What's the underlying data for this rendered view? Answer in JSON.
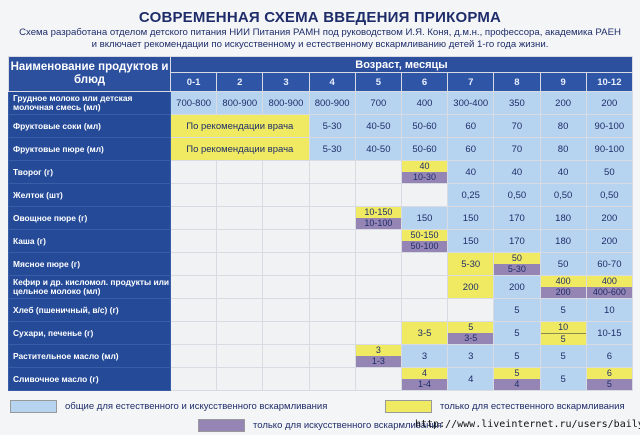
{
  "title": "СОВРЕМЕННАЯ СХЕМА ВВЕДЕНИЯ ПРИКОРМА",
  "subtitle_1": "Схема разработана отделом детского питания НИИ Питания РАМН под руководством И.Я. Коня,  д.м.н., профессора,  академика РАЕН",
  "subtitle_2": "и включает рекомендации по искусственному и естественному вскармливанию детей 1-го года жизни.",
  "colors": {
    "c": "#b6d3ef",
    "y": "#f0ea62",
    "p": "#9585b5",
    "w": "#f1f2f4",
    "header": "#244a98"
  },
  "table": {
    "name_header": "Наименование продуктов и блюд",
    "age_header": "Возраст, месяцы",
    "months": [
      "0-1",
      "2",
      "3",
      "4",
      "5",
      "6",
      "7",
      "8",
      "9",
      "10-12"
    ],
    "rows": [
      {
        "name": "Грудное молоко или детская молочная смесь (мл)",
        "cells": [
          {
            "v": "700-800",
            "c": "c"
          },
          {
            "v": "800-900",
            "c": "c"
          },
          {
            "v": "800-900",
            "c": "c"
          },
          {
            "v": "800-900",
            "c": "c"
          },
          {
            "v": "700",
            "c": "c"
          },
          {
            "v": "400",
            "c": "c"
          },
          {
            "v": "300-400",
            "c": "c"
          },
          {
            "v": "350",
            "c": "c"
          },
          {
            "v": "200",
            "c": "c"
          },
          {
            "v": "200",
            "c": "c"
          }
        ]
      },
      {
        "name": "Фруктовые соки (мл)",
        "cells": [
          {
            "v": "По рекомендации врача",
            "c": "y",
            "span": 3
          },
          {
            "v": "5-30",
            "c": "c"
          },
          {
            "v": "40-50",
            "c": "c"
          },
          {
            "v": "50-60",
            "c": "c"
          },
          {
            "v": "60",
            "c": "c"
          },
          {
            "v": "70",
            "c": "c"
          },
          {
            "v": "80",
            "c": "c"
          },
          {
            "v": "90-100",
            "c": "c"
          }
        ]
      },
      {
        "name": "Фруктовые пюре (мл)",
        "cells": [
          {
            "v": "По рекомендации врача",
            "c": "y",
            "span": 3
          },
          {
            "v": "5-30",
            "c": "c"
          },
          {
            "v": "40-50",
            "c": "c"
          },
          {
            "v": "50-60",
            "c": "c"
          },
          {
            "v": "60",
            "c": "c"
          },
          {
            "v": "70",
            "c": "c"
          },
          {
            "v": "80",
            "c": "c"
          },
          {
            "v": "90-100",
            "c": "c"
          }
        ]
      },
      {
        "name": "Творог (г)",
        "cells": [
          {
            "v": "",
            "c": "w"
          },
          {
            "v": "",
            "c": "w"
          },
          {
            "v": "",
            "c": "w"
          },
          {
            "v": "",
            "c": "w"
          },
          {
            "v": "",
            "c": "w"
          },
          {
            "top": "40",
            "tc": "y",
            "bot": "10-30",
            "bc": "p"
          },
          {
            "v": "40",
            "c": "c"
          },
          {
            "v": "40",
            "c": "c"
          },
          {
            "v": "40",
            "c": "c"
          },
          {
            "v": "50",
            "c": "c"
          }
        ]
      },
      {
        "name": "Желток (шт)",
        "cells": [
          {
            "v": "",
            "c": "w"
          },
          {
            "v": "",
            "c": "w"
          },
          {
            "v": "",
            "c": "w"
          },
          {
            "v": "",
            "c": "w"
          },
          {
            "v": "",
            "c": "w"
          },
          {
            "v": "",
            "c": "w"
          },
          {
            "v": "0,25",
            "c": "c"
          },
          {
            "v": "0,50",
            "c": "c"
          },
          {
            "v": "0,50",
            "c": "c"
          },
          {
            "v": "0,50",
            "c": "c"
          }
        ]
      },
      {
        "name": "Овощное пюре (г)",
        "cells": [
          {
            "v": "",
            "c": "w"
          },
          {
            "v": "",
            "c": "w"
          },
          {
            "v": "",
            "c": "w"
          },
          {
            "v": "",
            "c": "w"
          },
          {
            "top": "10-150",
            "tc": "y",
            "bot": "10-100",
            "bc": "p"
          },
          {
            "v": "150",
            "c": "c"
          },
          {
            "v": "150",
            "c": "c"
          },
          {
            "v": "170",
            "c": "c"
          },
          {
            "v": "180",
            "c": "c"
          },
          {
            "v": "200",
            "c": "c"
          }
        ]
      },
      {
        "name": "Каша (г)",
        "cells": [
          {
            "v": "",
            "c": "w"
          },
          {
            "v": "",
            "c": "w"
          },
          {
            "v": "",
            "c": "w"
          },
          {
            "v": "",
            "c": "w"
          },
          {
            "v": "",
            "c": "w"
          },
          {
            "top": "50-150",
            "tc": "y",
            "bot": "50-100",
            "bc": "p"
          },
          {
            "v": "150",
            "c": "c"
          },
          {
            "v": "170",
            "c": "c"
          },
          {
            "v": "180",
            "c": "c"
          },
          {
            "v": "200",
            "c": "c"
          }
        ]
      },
      {
        "name": "Мясное пюре (г)",
        "cells": [
          {
            "v": "",
            "c": "w"
          },
          {
            "v": "",
            "c": "w"
          },
          {
            "v": "",
            "c": "w"
          },
          {
            "v": "",
            "c": "w"
          },
          {
            "v": "",
            "c": "w"
          },
          {
            "v": "",
            "c": "w"
          },
          {
            "v": "5-30",
            "c": "y"
          },
          {
            "top": "50",
            "tc": "y",
            "bot": "5-30",
            "bc": "p"
          },
          {
            "v": "50",
            "c": "c"
          },
          {
            "v": "60-70",
            "c": "c"
          }
        ]
      },
      {
        "name": "Кефир и др. кисломол. продукты или цельное молоко (мл)",
        "cells": [
          {
            "v": "",
            "c": "w"
          },
          {
            "v": "",
            "c": "w"
          },
          {
            "v": "",
            "c": "w"
          },
          {
            "v": "",
            "c": "w"
          },
          {
            "v": "",
            "c": "w"
          },
          {
            "v": "",
            "c": "w"
          },
          {
            "v": "200",
            "c": "y"
          },
          {
            "v": "200",
            "c": "c"
          },
          {
            "top": "400",
            "tc": "y",
            "bot": "200",
            "bc": "p"
          },
          {
            "top": "400",
            "tc": "y",
            "bot": "400-600",
            "bc": "p"
          }
        ]
      },
      {
        "name": "Хлеб (пшеничный, в/с) (г)",
        "cells": [
          {
            "v": "",
            "c": "w"
          },
          {
            "v": "",
            "c": "w"
          },
          {
            "v": "",
            "c": "w"
          },
          {
            "v": "",
            "c": "w"
          },
          {
            "v": "",
            "c": "w"
          },
          {
            "v": "",
            "c": "w"
          },
          {
            "v": "",
            "c": "w"
          },
          {
            "v": "5",
            "c": "c"
          },
          {
            "v": "5",
            "c": "c"
          },
          {
            "v": "10",
            "c": "c"
          }
        ]
      },
      {
        "name": "Сухари,  печенье (г)",
        "cells": [
          {
            "v": "",
            "c": "w"
          },
          {
            "v": "",
            "c": "w"
          },
          {
            "v": "",
            "c": "w"
          },
          {
            "v": "",
            "c": "w"
          },
          {
            "v": "",
            "c": "w"
          },
          {
            "v": "3-5",
            "c": "y"
          },
          {
            "top": "5",
            "tc": "y",
            "bot": "3-5",
            "bc": "p"
          },
          {
            "v": "5",
            "c": "c"
          },
          {
            "top": "10",
            "tc": "y",
            "bot": "5",
            "bc": "y"
          },
          {
            "v": "10-15",
            "c": "c"
          }
        ]
      },
      {
        "name": "Растительное масло (мл)",
        "cells": [
          {
            "v": "",
            "c": "w"
          },
          {
            "v": "",
            "c": "w"
          },
          {
            "v": "",
            "c": "w"
          },
          {
            "v": "",
            "c": "w"
          },
          {
            "top": "3",
            "tc": "y",
            "bot": "1-3",
            "bc": "p"
          },
          {
            "v": "3",
            "c": "c"
          },
          {
            "v": "3",
            "c": "c"
          },
          {
            "v": "5",
            "c": "c"
          },
          {
            "v": "5",
            "c": "c"
          },
          {
            "v": "6",
            "c": "c"
          }
        ]
      },
      {
        "name": "Сливочное масло (г)",
        "cells": [
          {
            "v": "",
            "c": "w"
          },
          {
            "v": "",
            "c": "w"
          },
          {
            "v": "",
            "c": "w"
          },
          {
            "v": "",
            "c": "w"
          },
          {
            "v": "",
            "c": "w"
          },
          {
            "top": "4",
            "tc": "y",
            "bot": "1-4",
            "bc": "p"
          },
          {
            "v": "4",
            "c": "c"
          },
          {
            "top": "5",
            "tc": "y",
            "bot": "4",
            "bc": "p"
          },
          {
            "v": "5",
            "c": "c"
          },
          {
            "top": "6",
            "tc": "y",
            "bot": "5",
            "bc": "p"
          }
        ]
      }
    ]
  },
  "legend": {
    "common": "общие для естественного и искусственного вскармливания",
    "natural": "только для естественного вскармливания",
    "artificial": "только для искусственного вскармливания"
  },
  "watermark": "http://www.liveinternet.ru/users/bailys/"
}
